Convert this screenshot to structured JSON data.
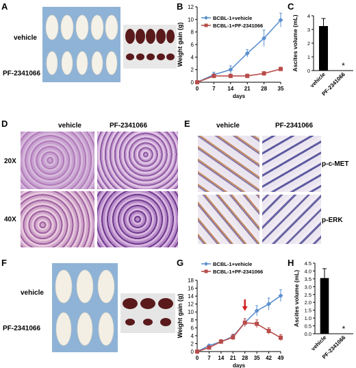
{
  "panels": {
    "A": {
      "letter": "A",
      "row_vehicle": "vehicle",
      "row_drug": "PF-2341066"
    },
    "B": {
      "letter": "B"
    },
    "C": {
      "letter": "C"
    },
    "D": {
      "letter": "D",
      "col_vehicle": "vehicle",
      "col_drug": "PF-2341066",
      "row_20x": "20X",
      "row_40x": "40X"
    },
    "E": {
      "letter": "E",
      "col_vehicle": "vehicle",
      "col_drug": "PF-2341066",
      "row1": "p-c-MET",
      "row2": "p-ERK"
    },
    "F": {
      "letter": "F",
      "row_vehicle": "vehicle",
      "row_drug": "PF-2341066"
    },
    "G": {
      "letter": "G"
    },
    "H": {
      "letter": "H"
    }
  },
  "colors": {
    "vehicle_series": "#5b8fcf",
    "drug_series": "#b84c4a",
    "bar": "#000000",
    "arrow": "#d32020",
    "mouse_bg_A": "#8fb3d6",
    "he_stain": "#c9a6d6",
    "ihc_bg": "#e9e4ef"
  },
  "chart_data": [
    {
      "id": "B",
      "type": "line",
      "xlabel": "days",
      "ylabel": "Weight gain (g)",
      "x": [
        0,
        7,
        14,
        21,
        28,
        35
      ],
      "xticks": [
        0,
        7,
        14,
        21,
        28,
        35
      ],
      "ylim": [
        0,
        12
      ],
      "yticks": [
        0,
        2,
        4,
        6,
        8,
        10,
        12
      ],
      "legend_position": "top-left",
      "series": [
        {
          "name": "BCBL-1+vehicle",
          "values": [
            0,
            1.2,
            2.0,
            4.6,
            7.0,
            9.9
          ],
          "errors": [
            0,
            0.4,
            0.6,
            0.6,
            1.3,
            1.1
          ],
          "marker": "diamond",
          "color": "#5b8fcf"
        },
        {
          "name": "BCBL-1+PF-2341066",
          "values": [
            0,
            1.0,
            1.0,
            1.0,
            1.4,
            2.1
          ],
          "errors": [
            0,
            0.3,
            0.3,
            0.3,
            0.3,
            0.3
          ],
          "marker": "square",
          "color": "#b84c4a"
        }
      ]
    },
    {
      "id": "C",
      "type": "bar",
      "ylabel": "Ascites volume (mL)",
      "categories": [
        "vehicle",
        "PF-2341066"
      ],
      "values": [
        3.25,
        0
      ],
      "errors": [
        0.55,
        0
      ],
      "ylim": [
        0,
        4
      ],
      "yticks": [
        0,
        1,
        2,
        3,
        4
      ],
      "annotation": "*"
    },
    {
      "id": "G",
      "type": "line",
      "xlabel": "days",
      "ylabel": "Weight gain (g)",
      "x": [
        0,
        7,
        14,
        21,
        28,
        35,
        42,
        49
      ],
      "xticks": [
        0,
        7,
        14,
        21,
        28,
        35,
        42,
        49
      ],
      "ylim": [
        0,
        18
      ],
      "yticks": [
        0,
        2,
        4,
        6,
        8,
        10,
        12,
        14,
        16,
        18
      ],
      "legend_position": "top-left",
      "arrow_at_day": 28,
      "series": [
        {
          "name": "BCBL-1+vehicle",
          "values": [
            0,
            1.5,
            2.5,
            3.8,
            7.3,
            10.3,
            12.0,
            14.1
          ],
          "errors": [
            0,
            0.3,
            0.5,
            0.6,
            1.0,
            1.3,
            1.5,
            1.5
          ],
          "marker": "diamond",
          "color": "#5b8fcf"
        },
        {
          "name": "BCBL-1+PF-2341066",
          "values": [
            0,
            1.0,
            2.5,
            3.6,
            7.3,
            7.0,
            5.2,
            3.5
          ],
          "errors": [
            0,
            0.3,
            0.5,
            0.7,
            1.0,
            1.0,
            0.8,
            0.8
          ],
          "marker": "square",
          "color": "#b84c4a"
        }
      ]
    },
    {
      "id": "H",
      "type": "bar",
      "ylabel": "Ascites volume (mL)",
      "categories": [
        "vehicle",
        "PF-2341066"
      ],
      "values": [
        3.55,
        0
      ],
      "errors": [
        0.6,
        0
      ],
      "ylim": [
        0,
        4.5
      ],
      "yticks": [
        "0.0",
        "0.5",
        "1.0",
        "1.5",
        "2.0",
        "2.5",
        "3.0",
        "3.5",
        "4.0",
        "4.5"
      ],
      "annotation": "*"
    }
  ]
}
